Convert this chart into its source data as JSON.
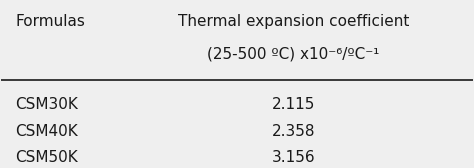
{
  "col1_header": "Formulas",
  "col2_header_line1": "Thermal expansion coefficient",
  "col2_header_line2": "(25-500 ºC) x10⁻⁶/ºC⁻¹",
  "rows": [
    [
      "CSM30K",
      "2.115"
    ],
    [
      "CSM40K",
      "2.358"
    ],
    [
      "CSM50K",
      "3.156"
    ]
  ],
  "bg_color": "#efefef",
  "text_color": "#1a1a1a",
  "font_size": 11,
  "header_font_size": 11
}
